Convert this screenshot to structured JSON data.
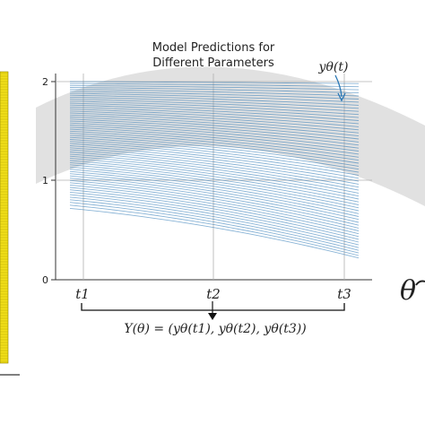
{
  "title_lines": [
    "Model Predictions for",
    "Different Parameters"
  ],
  "y_ticks": [
    "0",
    "1",
    "2"
  ],
  "x_ticks": [
    "t1",
    "t2",
    "t3"
  ],
  "curve_label": "yθ(t)",
  "bracket_formula": "Y(θ) = (yθ(t1), yθ(t2), yθ(t3))",
  "theta_symbol": "θ",
  "colors": {
    "curve": "#2a77b4",
    "axis": "#333333",
    "grid": "#b0b0b0",
    "band": "#dcdcdc",
    "yellow_bar": "#f2e01a"
  },
  "chart_data": {
    "type": "line",
    "title": "Model Predictions for Different Parameters",
    "x": [
      "t1",
      "t2",
      "t3"
    ],
    "ylim": [
      0,
      2
    ],
    "grid": true,
    "series_count": 60,
    "start_range": [
      0.72,
      2.0
    ],
    "end_range": [
      0.22,
      1.98
    ],
    "curve_label": "yθ(t)"
  }
}
